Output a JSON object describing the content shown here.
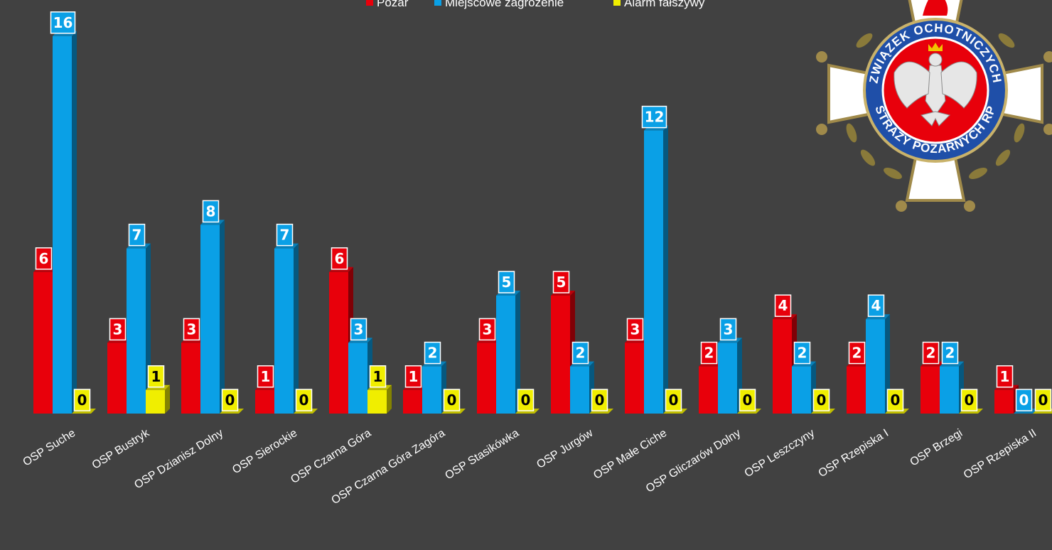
{
  "chart_data": {
    "type": "bar",
    "categories": [
      "OSP Suche",
      "OSP Bustryk",
      "OSP Dzianisz Dolny",
      "OSP Sierockie",
      "OSP Czarna Góra",
      "OSP Czarna Góra Zagóra",
      "OSP Stasikówka",
      "OSP Jurgów",
      "OSP Małe Ciche",
      "OSP Gliczarów Dolny",
      "OSP Leszczyny",
      "OSP Rzepiska I",
      "OSP Brzegi",
      "OSP Rzepiska II"
    ],
    "series": [
      {
        "name": "Pożar",
        "color": "#e8000b",
        "values": [
          6,
          3,
          3,
          1,
          6,
          1,
          3,
          5,
          3,
          2,
          4,
          2,
          2,
          1
        ]
      },
      {
        "name": "Miejscowe zagrożenie",
        "color": "#0aa0e6",
        "values": [
          16,
          7,
          8,
          7,
          3,
          2,
          5,
          2,
          12,
          3,
          2,
          4,
          2,
          0
        ]
      },
      {
        "name": "Alarm fałszywy",
        "color": "#f0ee00",
        "values": [
          0,
          1,
          0,
          0,
          1,
          0,
          0,
          0,
          0,
          0,
          0,
          0,
          0,
          0
        ]
      }
    ],
    "ylim": [
      0,
      16
    ],
    "legend_position": "top",
    "grid": false
  },
  "logo": {
    "text_top": "ZWIĄZEK OCHOTNICZYCH",
    "text_bottom": "STRAŻY POŻARNYCH RP"
  }
}
